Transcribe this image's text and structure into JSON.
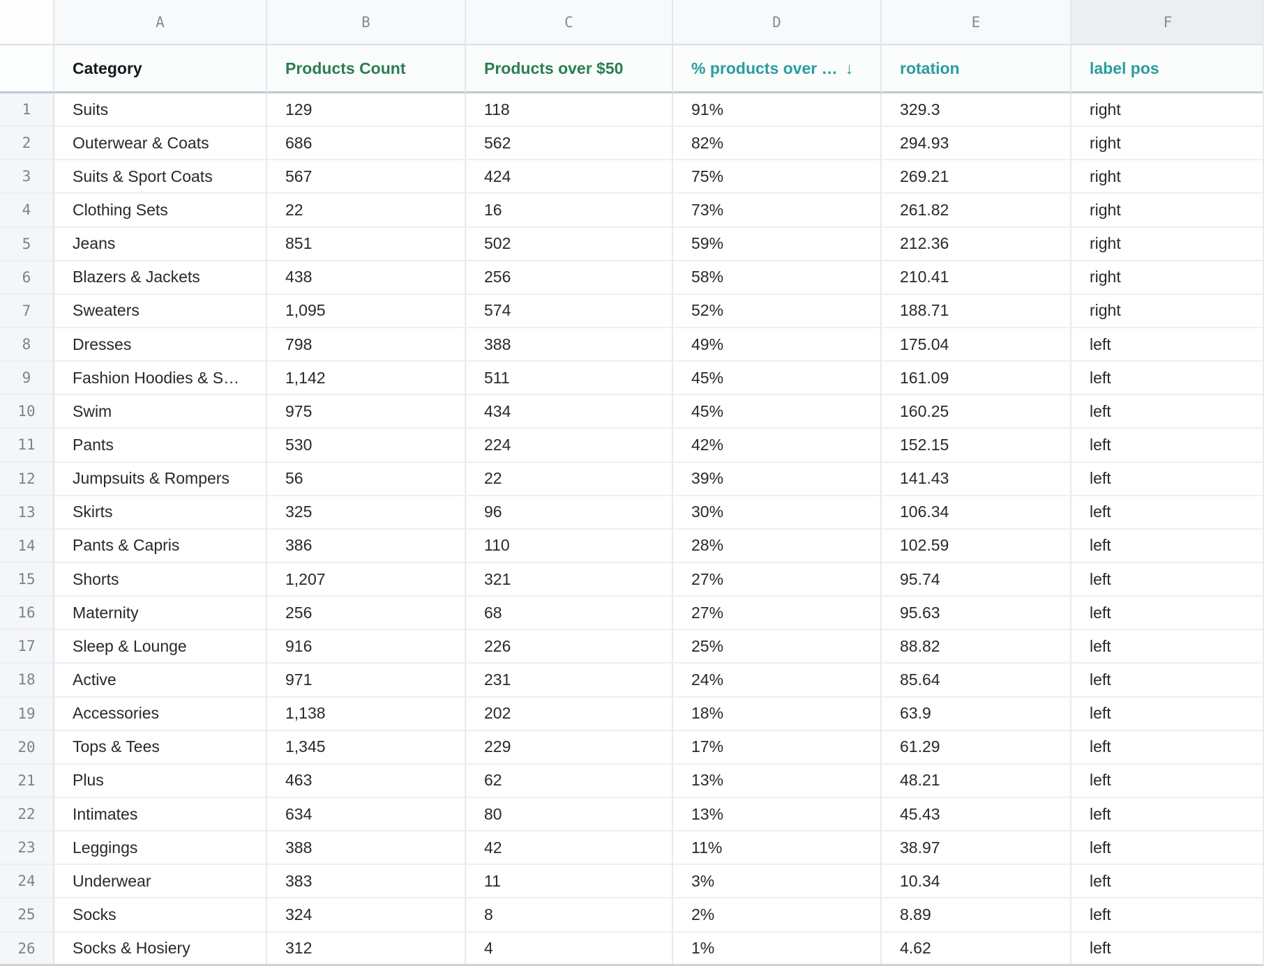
{
  "colors": {
    "header_dark": "#15181d",
    "header_green": "#2b7d53",
    "header_teal": "#299d9e",
    "cell_text": "#26292f",
    "gutter_text": "#7c818b",
    "selected_letter_bg": "#eceef2"
  },
  "sheet": {
    "columns": [
      {
        "letter": "A",
        "header": "Category",
        "style": "dark"
      },
      {
        "letter": "B",
        "header": "Products Count",
        "style": "green"
      },
      {
        "letter": "C",
        "header": "Products over $50",
        "style": "green"
      },
      {
        "letter": "D",
        "header": "% products over …",
        "style": "teal",
        "sort": "desc",
        "sort_icon": "↓"
      },
      {
        "letter": "E",
        "header": "rotation",
        "style": "teal"
      },
      {
        "letter": "F",
        "header": "label pos",
        "style": "teal",
        "selected": true
      }
    ],
    "rows": [
      {
        "n": "1",
        "cells": [
          "Suits",
          "129",
          "118",
          "91%",
          "329.3",
          "right"
        ]
      },
      {
        "n": "2",
        "cells": [
          "Outerwear & Coats",
          "686",
          "562",
          "82%",
          "294.93",
          "right"
        ]
      },
      {
        "n": "3",
        "cells": [
          "Suits & Sport Coats",
          "567",
          "424",
          "75%",
          "269.21",
          "right"
        ]
      },
      {
        "n": "4",
        "cells": [
          "Clothing Sets",
          "22",
          "16",
          "73%",
          "261.82",
          "right"
        ]
      },
      {
        "n": "5",
        "cells": [
          "Jeans",
          "851",
          "502",
          "59%",
          "212.36",
          "right"
        ]
      },
      {
        "n": "6",
        "cells": [
          "Blazers & Jackets",
          "438",
          "256",
          "58%",
          "210.41",
          "right"
        ]
      },
      {
        "n": "7",
        "cells": [
          "Sweaters",
          "1,095",
          "574",
          "52%",
          "188.71",
          "right"
        ]
      },
      {
        "n": "8",
        "cells": [
          "Dresses",
          "798",
          "388",
          "49%",
          "175.04",
          "left"
        ]
      },
      {
        "n": "9",
        "cells": [
          "Fashion Hoodies & S…",
          "1,142",
          "511",
          "45%",
          "161.09",
          "left"
        ]
      },
      {
        "n": "10",
        "cells": [
          "Swim",
          "975",
          "434",
          "45%",
          "160.25",
          "left"
        ]
      },
      {
        "n": "11",
        "cells": [
          "Pants",
          "530",
          "224",
          "42%",
          "152.15",
          "left"
        ]
      },
      {
        "n": "12",
        "cells": [
          "Jumpsuits & Rompers",
          "56",
          "22",
          "39%",
          "141.43",
          "left"
        ]
      },
      {
        "n": "13",
        "cells": [
          "Skirts",
          "325",
          "96",
          "30%",
          "106.34",
          "left"
        ]
      },
      {
        "n": "14",
        "cells": [
          "Pants & Capris",
          "386",
          "110",
          "28%",
          "102.59",
          "left"
        ]
      },
      {
        "n": "15",
        "cells": [
          "Shorts",
          "1,207",
          "321",
          "27%",
          "95.74",
          "left"
        ]
      },
      {
        "n": "16",
        "cells": [
          "Maternity",
          "256",
          "68",
          "27%",
          "95.63",
          "left"
        ]
      },
      {
        "n": "17",
        "cells": [
          "Sleep & Lounge",
          "916",
          "226",
          "25%",
          "88.82",
          "left"
        ]
      },
      {
        "n": "18",
        "cells": [
          "Active",
          "971",
          "231",
          "24%",
          "85.64",
          "left"
        ]
      },
      {
        "n": "19",
        "cells": [
          "Accessories",
          "1,138",
          "202",
          "18%",
          "63.9",
          "left"
        ]
      },
      {
        "n": "20",
        "cells": [
          "Tops & Tees",
          "1,345",
          "229",
          "17%",
          "61.29",
          "left"
        ]
      },
      {
        "n": "21",
        "cells": [
          "Plus",
          "463",
          "62",
          "13%",
          "48.21",
          "left"
        ]
      },
      {
        "n": "22",
        "cells": [
          "Intimates",
          "634",
          "80",
          "13%",
          "45.43",
          "left"
        ]
      },
      {
        "n": "23",
        "cells": [
          "Leggings",
          "388",
          "42",
          "11%",
          "38.97",
          "left"
        ]
      },
      {
        "n": "24",
        "cells": [
          "Underwear",
          "383",
          "11",
          "3%",
          "10.34",
          "left"
        ]
      },
      {
        "n": "25",
        "cells": [
          "Socks",
          "324",
          "8",
          "2%",
          "8.89",
          "left"
        ]
      },
      {
        "n": "26",
        "cells": [
          "Socks & Hosiery",
          "312",
          "4",
          "1%",
          "4.62",
          "left"
        ]
      }
    ]
  }
}
